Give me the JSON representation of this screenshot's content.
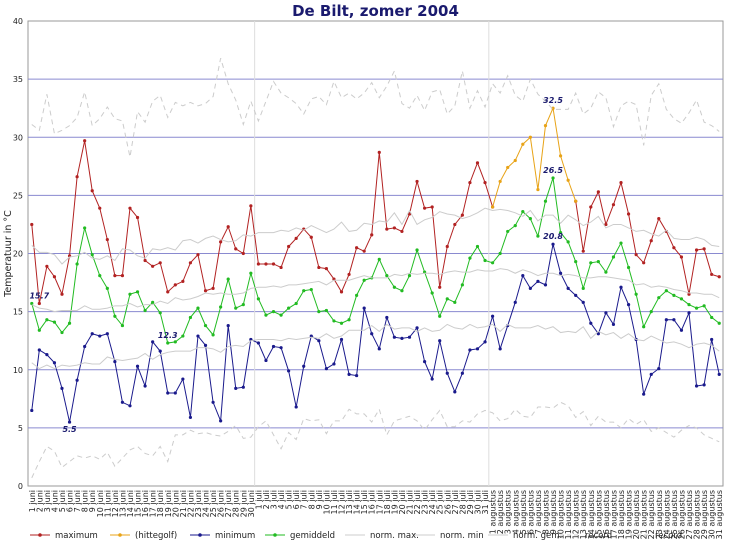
{
  "chart_data": {
    "type": "line",
    "title": "De Bilt, zomer 2004",
    "ylabel": "Temperatuur in °C",
    "ylim": [
      0,
      40
    ],
    "yticks": [
      0,
      5,
      10,
      15,
      20,
      25,
      30,
      35,
      40
    ],
    "grid": true,
    "legend_position": "bottom",
    "categories": [
      "1 juni",
      "2 juni",
      "3 juni",
      "4 juni",
      "5 juni",
      "6 juni",
      "7 juni",
      "8 juni",
      "9 juni",
      "10 juni",
      "11 juni",
      "12 juni",
      "13 juni",
      "14 juni",
      "15 juni",
      "16 juni",
      "17 juni",
      "18 juni",
      "19 juni",
      "20 juni",
      "21 juni",
      "22 juni",
      "23 juni",
      "24 juni",
      "25 juni",
      "26 juni",
      "27 juni",
      "28 juni",
      "29 juni",
      "30 juni",
      "1 juli",
      "2 juli",
      "3 juli",
      "4 juli",
      "5 juli",
      "6 juli",
      "7 juli",
      "8 juli",
      "9 juli",
      "10 juli",
      "11 juli",
      "12 juli",
      "13 juli",
      "14 juli",
      "15 juli",
      "16 juli",
      "17 juli",
      "18 juli",
      "19 juli",
      "20 juli",
      "21 juli",
      "22 juli",
      "23 juli",
      "24 juli",
      "25 juli",
      "26 juli",
      "27 juli",
      "28 juli",
      "29 juli",
      "30 juli",
      "31 juli",
      "1 augustus",
      "2 augustus",
      "3 augustus",
      "4 augustus",
      "5 augustus",
      "6 augustus",
      "7 augustus",
      "8 augustus",
      "9 augustus",
      "10 augustus",
      "11 augustus",
      "12 augustus",
      "13 augustus",
      "14 augustus",
      "15 augustus",
      "16 augustus",
      "17 augustus",
      "18 augustus",
      "19 augustus",
      "20 augustus",
      "21 augustus",
      "22 augustus",
      "23 augustus",
      "24 augustus",
      "25 augustus",
      "26 augustus",
      "27 augustus",
      "28 augustus",
      "29 augustus",
      "30 augustus",
      "31 augustus"
    ],
    "series": [
      {
        "name": "maximum",
        "color": "#b22222",
        "marker": true,
        "values": [
          22.5,
          15.7,
          18.9,
          18.0,
          16.5,
          19.8,
          26.6,
          29.7,
          25.4,
          23.9,
          21.2,
          18.1,
          18.1,
          23.9,
          23.1,
          19.4,
          18.9,
          19.2,
          16.7,
          17.3,
          17.6,
          19.2,
          19.9,
          16.8,
          17.0,
          21.0,
          22.3,
          20.4,
          20.0,
          24.1,
          19.1,
          19.1,
          19.1,
          18.8,
          20.6,
          21.3,
          22.1,
          21.4,
          18.8,
          18.7,
          17.8,
          16.7,
          18.2,
          20.5,
          20.2,
          21.6,
          28.7,
          22.1,
          22.2,
          21.9,
          23.4,
          26.2,
          23.9,
          24.0,
          17.1,
          20.6,
          22.5,
          23.3,
          26.1,
          27.8,
          26.1,
          24.0,
          null,
          null,
          null,
          null,
          null,
          null,
          null,
          null,
          null,
          null,
          24.5,
          20.2,
          24.0,
          25.3,
          22.5,
          24.2,
          26.1,
          23.4,
          19.9,
          19.2,
          21.1,
          23.0,
          21.9,
          20.5,
          19.7,
          16.5,
          20.3,
          20.4,
          18.2,
          18.0
        ]
      },
      {
        "name": "(hittegolf)",
        "color": "#e8a317",
        "marker": true,
        "values": [
          null,
          null,
          null,
          null,
          null,
          null,
          null,
          null,
          null,
          null,
          null,
          null,
          null,
          null,
          null,
          null,
          null,
          null,
          null,
          null,
          null,
          null,
          null,
          null,
          null,
          null,
          null,
          null,
          null,
          null,
          null,
          null,
          null,
          null,
          null,
          null,
          null,
          null,
          null,
          null,
          null,
          null,
          null,
          null,
          null,
          null,
          null,
          null,
          null,
          null,
          null,
          null,
          null,
          null,
          null,
          null,
          null,
          null,
          null,
          null,
          null,
          24.0,
          26.2,
          27.4,
          28.0,
          29.4,
          30.0,
          25.5,
          31.0,
          32.5,
          28.4,
          26.3,
          24.5,
          null,
          null,
          null,
          null,
          null,
          null,
          null,
          null,
          null,
          null,
          null,
          null,
          null,
          null,
          null,
          null,
          null,
          null,
          null
        ]
      },
      {
        "name": "minimum",
        "color": "#1a1a8c",
        "marker": true,
        "values": [
          6.5,
          11.7,
          11.3,
          10.6,
          8.4,
          5.5,
          9.1,
          12.0,
          13.1,
          12.9,
          13.1,
          10.7,
          7.2,
          6.9,
          10.3,
          8.6,
          12.4,
          11.6,
          8.0,
          8.0,
          9.2,
          5.9,
          12.9,
          12.1,
          7.2,
          5.6,
          13.8,
          8.4,
          8.5,
          12.6,
          12.3,
          10.8,
          12.0,
          11.9,
          9.9,
          6.8,
          10.3,
          12.9,
          12.5,
          10.1,
          10.5,
          12.6,
          9.6,
          9.5,
          15.3,
          13.1,
          11.8,
          14.5,
          12.8,
          12.7,
          12.8,
          13.6,
          10.7,
          9.2,
          12.5,
          9.7,
          8.1,
          9.7,
          11.7,
          11.8,
          12.4,
          14.6,
          11.8,
          13.8,
          15.8,
          18.1,
          17.0,
          17.6,
          17.3,
          20.8,
          18.3,
          17.0,
          16.4,
          15.8,
          14.0,
          13.1,
          14.9,
          13.9,
          17.1,
          15.6,
          12.6,
          7.9,
          9.6,
          10.1,
          14.3,
          14.3,
          13.4,
          14.9,
          8.6,
          8.7,
          12.6,
          9.6
        ]
      },
      {
        "name": "gemiddeld",
        "color": "#22bb22",
        "marker": true,
        "values": [
          15.7,
          13.4,
          14.3,
          14.1,
          13.2,
          14.0,
          19.1,
          22.2,
          19.9,
          18.1,
          17.0,
          14.6,
          13.8,
          16.5,
          16.7,
          15.1,
          15.8,
          14.9,
          12.3,
          12.4,
          12.9,
          14.5,
          15.3,
          13.8,
          13.0,
          15.4,
          17.8,
          15.3,
          15.6,
          18.3,
          16.1,
          14.7,
          15.0,
          14.7,
          15.3,
          15.7,
          16.8,
          16.9,
          15.0,
          15.1,
          14.2,
          14.0,
          14.3,
          16.4,
          17.7,
          17.9,
          19.5,
          18.1,
          17.1,
          16.8,
          18.1,
          20.3,
          18.4,
          16.6,
          14.6,
          16.1,
          15.8,
          17.3,
          19.6,
          20.6,
          19.4,
          19.2,
          20.0,
          21.9,
          22.4,
          23.6,
          23.0,
          21.5,
          24.5,
          26.5,
          21.8,
          21.0,
          19.3,
          17.0,
          19.2,
          19.3,
          18.4,
          19.7,
          20.9,
          18.8,
          16.5,
          13.7,
          15.0,
          16.2,
          16.8,
          16.4,
          16.1,
          15.6,
          15.3,
          15.5,
          14.5,
          14.0
        ]
      },
      {
        "name": "norm. max.",
        "color": "#cccccc",
        "marker": false,
        "dash": "solid",
        "values": [
          20.7,
          20.1,
          20.1,
          19.9,
          19.1,
          19.7,
          19.8,
          20.1,
          19.6,
          19.5,
          19.8,
          19.4,
          20.4,
          20.3,
          19.8,
          19.6,
          20.4,
          20.3,
          20.5,
          20.3,
          21.1,
          21.2,
          20.9,
          21.3,
          21.5,
          21.2,
          21.0,
          21.1,
          21.6,
          21.5,
          21.8,
          21.8,
          21.8,
          22.0,
          21.9,
          22.2,
          22.0,
          22.4,
          22.1,
          21.8,
          22.1,
          22.7,
          21.9,
          22.0,
          22.6,
          22.5,
          22.8,
          22.7,
          23.5,
          22.5,
          23.7,
          22.5,
          22.9,
          23.1,
          23.6,
          23.4,
          23.3,
          23.0,
          23.2,
          23.5,
          23.9,
          23.7,
          23.8,
          23.7,
          23.5,
          23.2,
          23.7,
          22.8,
          23.3,
          23.3,
          22.6,
          23.3,
          22.9,
          22.4,
          22.7,
          23.2,
          22.2,
          22.5,
          22.5,
          22.2,
          21.9,
          22.0,
          21.7,
          21.5,
          22.0,
          21.3,
          21.2,
          21.2,
          21.4,
          21.2,
          20.7,
          20.6
        ]
      },
      {
        "name": "norm. min",
        "color": "#cccccc",
        "marker": false,
        "dash": "solid",
        "values": [
          10.6,
          10.1,
          10.4,
          10.1,
          10.4,
          10.3,
          10.4,
          10.6,
          10.5,
          10.5,
          11.1,
          10.9,
          10.8,
          10.9,
          11.0,
          11.4,
          10.9,
          11.3,
          11.5,
          11.6,
          11.6,
          11.6,
          11.9,
          11.9,
          11.8,
          11.5,
          12.0,
          12.1,
          12.0,
          12.5,
          12.6,
          12.6,
          12.6,
          12.5,
          12.7,
          12.6,
          12.7,
          12.8,
          12.7,
          13.1,
          12.7,
          12.9,
          13.4,
          13.4,
          13.4,
          13.8,
          13.3,
          13.9,
          13.5,
          13.6,
          13.6,
          13.3,
          13.6,
          13.3,
          13.4,
          13.9,
          13.6,
          13.5,
          13.9,
          13.6,
          13.7,
          13.9,
          13.3,
          13.9,
          13.6,
          13.6,
          13.6,
          13.8,
          13.5,
          13.7,
          13.2,
          13.3,
          13.2,
          13.7,
          12.7,
          13.3,
          13.0,
          13.2,
          12.7,
          13.1,
          12.6,
          12.5,
          12.9,
          12.6,
          12.3,
          12.4,
          12.2,
          11.9,
          12.2,
          12.3,
          12.1,
          11.6
        ]
      },
      {
        "name": "norm. gem.",
        "color": "#cccccc",
        "marker": false,
        "dash": "solid",
        "values": [
          15.6,
          15.3,
          15.2,
          15.0,
          15.1,
          15.1,
          15.1,
          15.5,
          15.2,
          15.2,
          15.3,
          15.5,
          15.5,
          15.7,
          15.4,
          15.6,
          15.6,
          15.9,
          15.7,
          16.2,
          16.0,
          16.1,
          16.3,
          16.6,
          16.5,
          16.6,
          16.5,
          16.5,
          16.6,
          17.0,
          17.1,
          17.1,
          17.2,
          17.1,
          17.3,
          17.3,
          17.4,
          17.5,
          17.6,
          17.3,
          17.7,
          17.7,
          17.7,
          17.9,
          18.1,
          17.9,
          17.9,
          17.9,
          18.2,
          18.1,
          18.3,
          18.2,
          18.3,
          18.3,
          18.2,
          18.4,
          18.5,
          18.4,
          18.4,
          18.6,
          18.5,
          18.5,
          18.7,
          18.6,
          18.3,
          18.6,
          18.4,
          18.1,
          18.3,
          18.3,
          18.1,
          18.2,
          18.1,
          17.9,
          17.9,
          18.0,
          18.0,
          17.9,
          17.8,
          17.7,
          17.3,
          17.4,
          17.1,
          17.2,
          17.1,
          16.9,
          16.8,
          16.6,
          16.6,
          16.5,
          16.5,
          16.2
        ]
      },
      {
        "name": "record",
        "color": "#cccccc",
        "marker": false,
        "dash": "dashed",
        "values": [
          31.1,
          30.6,
          33.7,
          30.3,
          30.6,
          31.0,
          31.7,
          33.9,
          31.0,
          31.6,
          32.6,
          31.6,
          31.4,
          28.3,
          32.2,
          31.3,
          33.1,
          33.6,
          31.7,
          33.0,
          32.7,
          33.0,
          32.7,
          32.9,
          33.5,
          36.8,
          34.6,
          33.2,
          31.1,
          33.1,
          31.4,
          33.1,
          34.8,
          33.8,
          33.4,
          32.9,
          32.0,
          33.3,
          33.5,
          32.8,
          34.8,
          33.4,
          33.8,
          33.3,
          33.8,
          34.7,
          33.4,
          34.4,
          35.7,
          32.9,
          32.5,
          33.6,
          32.3,
          33.9,
          34.1,
          32.0,
          32.7,
          35.7,
          32.5,
          34.0,
          32.6,
          34.6,
          33.8,
          35.3,
          33.6,
          33.1,
          35.0,
          33.7,
          33.1,
          32.4,
          32.4,
          32.4,
          33.8,
          32.0,
          32.5,
          33.9,
          33.4,
          30.9,
          32.7,
          33.1,
          32.8,
          29.3,
          33.6,
          34.6,
          32.4,
          31.6,
          31.2,
          32.1,
          33.2,
          31.3,
          31.0,
          30.5
        ]
      },
      {
        "name": "record",
        "color": "#cccccc",
        "marker": false,
        "dash": "dashed",
        "values": [
          0.7,
          2.1,
          3.4,
          3.0,
          1.6,
          2.1,
          2.6,
          2.4,
          2.6,
          2.3,
          2.9,
          1.7,
          2.4,
          3.1,
          3.4,
          2.8,
          2.6,
          3.4,
          2.1,
          4.4,
          4.4,
          4.8,
          4.5,
          4.6,
          4.4,
          4.3,
          4.7,
          5.2,
          4.1,
          4.2,
          5.1,
          5.6,
          4.4,
          3.2,
          4.6,
          4.0,
          5.8,
          5.6,
          5.7,
          4.5,
          5.6,
          5.6,
          6.6,
          6.2,
          6.2,
          5.5,
          6.6,
          4.4,
          5.6,
          5.8,
          6.0,
          5.6,
          4.8,
          5.7,
          6.5,
          5.1,
          5.1,
          5.6,
          5.5,
          6.2,
          6.5,
          6.3,
          5.6,
          5.8,
          6.6,
          6.0,
          5.9,
          6.8,
          6.8,
          6.7,
          7.2,
          6.9,
          5.9,
          6.4,
          5.2,
          6.0,
          5.5,
          5.5,
          5.0,
          5.8,
          5.3,
          5.7,
          4.7,
          5.0,
          4.6,
          4.2,
          4.8,
          5.2,
          5.0,
          4.4,
          4.1,
          3.8
        ]
      }
    ],
    "annotations": [
      {
        "text": "15.7",
        "series": "maximum",
        "index": 1
      },
      {
        "text": "5.5",
        "series": "minimum",
        "index": 5
      },
      {
        "text": "12.3",
        "series": "gemiddeld",
        "index": 18
      },
      {
        "text": "32.5",
        "series": "(hittegolf)",
        "index": 69
      },
      {
        "text": "26.5",
        "series": "gemiddeld",
        "index": 69
      },
      {
        "text": "20.8",
        "series": "minimum",
        "index": 69
      }
    ]
  }
}
